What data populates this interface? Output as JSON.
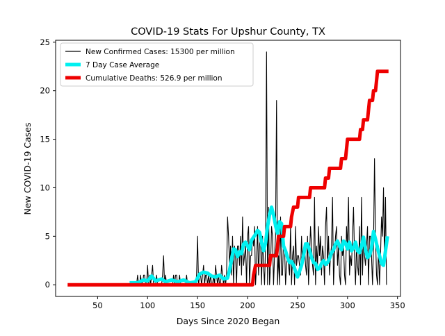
{
  "chart_data": {
    "type": "line",
    "title": "COVID-19 Stats For Upshur County, TX",
    "xlabel": "Days Since 2020 Began",
    "ylabel": "New COVID-19 Cases",
    "xlim": [
      8,
      353
    ],
    "ylim": [
      -1.2,
      25.2
    ],
    "xticks": [
      50,
      100,
      150,
      200,
      250,
      300,
      350
    ],
    "yticks": [
      0,
      5,
      10,
      15,
      20,
      25
    ],
    "legend_position": "top-left",
    "colors": {
      "daily": "#000000",
      "avg": "#00f0f0",
      "deaths": "#ee0000"
    },
    "series": [
      {
        "name": "New Confirmed Cases: 15300 per million",
        "style": "thin-black",
        "x_start": 82,
        "values": [
          0,
          0,
          0,
          0,
          0,
          0,
          0,
          0,
          1,
          0,
          0,
          1,
          0,
          0,
          1,
          1,
          0,
          0,
          2,
          0,
          1,
          0,
          1,
          2,
          0,
          0,
          0,
          1,
          0,
          0,
          0,
          0,
          0,
          1,
          3,
          0,
          1,
          0,
          0,
          0,
          0,
          0,
          0,
          0,
          1,
          0,
          1,
          1,
          0,
          0,
          1,
          0,
          0,
          0,
          0,
          0,
          0,
          1,
          0,
          0,
          0,
          0,
          0,
          0,
          0,
          0,
          0,
          1,
          5,
          0,
          1,
          1,
          0,
          1,
          2,
          0,
          1,
          1,
          0,
          1,
          0,
          1,
          0,
          0,
          1,
          0,
          2,
          1,
          0,
          1,
          0,
          0,
          2,
          1,
          0,
          1,
          0,
          1,
          7,
          5,
          2,
          4,
          1,
          5,
          0,
          4,
          3,
          0,
          4,
          4,
          2,
          5,
          1,
          7,
          2,
          3,
          4,
          0,
          5,
          6,
          0,
          3,
          3,
          5,
          4,
          6,
          0,
          2,
          6,
          1,
          4,
          5,
          0,
          5,
          2,
          0,
          4,
          24,
          0,
          8,
          0,
          2,
          6,
          5,
          0,
          3,
          5,
          19,
          0,
          3,
          0,
          7,
          1,
          1,
          5,
          4,
          0,
          2,
          3,
          2,
          1,
          6,
          0,
          3,
          4,
          0,
          6,
          2,
          3,
          3,
          2,
          1,
          5,
          2,
          3,
          4,
          2,
          1,
          5,
          0,
          3,
          6,
          4,
          2,
          1,
          9,
          0,
          4,
          2,
          6,
          3,
          5,
          1,
          4,
          3,
          0,
          6,
          8,
          2,
          5,
          1,
          3,
          4,
          9,
          0,
          3,
          5,
          6,
          2,
          4,
          1,
          0,
          5,
          3,
          4,
          1,
          0,
          6,
          4,
          9,
          1,
          3,
          2,
          5,
          8,
          3,
          0,
          4,
          2,
          1,
          6,
          0,
          9,
          1,
          5,
          3,
          2,
          4,
          6,
          0,
          5,
          5,
          3,
          0,
          4,
          13,
          5,
          1,
          0,
          4,
          0,
          3,
          7,
          5,
          10,
          2,
          9,
          0
        ]
      },
      {
        "name": "7 Day Case Average",
        "style": "thick-cyan",
        "points": [
          [
            82,
            0.2
          ],
          [
            90,
            0.2
          ],
          [
            96,
            0.5
          ],
          [
            100,
            0.4
          ],
          [
            104,
            0.9
          ],
          [
            108,
            0.4
          ],
          [
            114,
            0.6
          ],
          [
            118,
            0.3
          ],
          [
            124,
            0.5
          ],
          [
            130,
            0.3
          ],
          [
            136,
            0.5
          ],
          [
            142,
            0.2
          ],
          [
            148,
            0.3
          ],
          [
            152,
            1.1
          ],
          [
            156,
            1.3
          ],
          [
            160,
            1.2
          ],
          [
            164,
            0.9
          ],
          [
            168,
            0.8
          ],
          [
            172,
            1.0
          ],
          [
            176,
            0.6
          ],
          [
            180,
            0.7
          ],
          [
            182,
            1.5
          ],
          [
            184,
            2.6
          ],
          [
            186,
            3.7
          ],
          [
            188,
            3.6
          ],
          [
            190,
            2.9
          ],
          [
            192,
            3.4
          ],
          [
            194,
            3.2
          ],
          [
            196,
            4.2
          ],
          [
            198,
            4.4
          ],
          [
            200,
            4.0
          ],
          [
            202,
            3.6
          ],
          [
            204,
            4.6
          ],
          [
            206,
            4.9
          ],
          [
            208,
            5.2
          ],
          [
            210,
            5.6
          ],
          [
            212,
            5.4
          ],
          [
            214,
            4.4
          ],
          [
            216,
            3.5
          ],
          [
            218,
            4.3
          ],
          [
            220,
            6.0
          ],
          [
            222,
            7.2
          ],
          [
            224,
            8.0
          ],
          [
            226,
            7.2
          ],
          [
            228,
            6.1
          ],
          [
            230,
            5.3
          ],
          [
            232,
            6.5
          ],
          [
            234,
            6.3
          ],
          [
            236,
            4.0
          ],
          [
            238,
            3.5
          ],
          [
            240,
            2.8
          ],
          [
            242,
            2.3
          ],
          [
            244,
            2.4
          ],
          [
            246,
            2.0
          ],
          [
            248,
            1.4
          ],
          [
            250,
            0.8
          ],
          [
            252,
            1.4
          ],
          [
            254,
            2.0
          ],
          [
            256,
            3.0
          ],
          [
            258,
            4.2
          ],
          [
            260,
            4.2
          ],
          [
            262,
            3.6
          ],
          [
            264,
            2.8
          ],
          [
            266,
            2.3
          ],
          [
            268,
            2.2
          ],
          [
            270,
            1.6
          ],
          [
            272,
            1.7
          ],
          [
            274,
            2.2
          ],
          [
            276,
            2.5
          ],
          [
            278,
            2.1
          ],
          [
            280,
            2.3
          ],
          [
            282,
            2.7
          ],
          [
            284,
            3.3
          ],
          [
            286,
            3.6
          ],
          [
            288,
            4.2
          ],
          [
            290,
            4.5
          ],
          [
            292,
            4.0
          ],
          [
            294,
            3.6
          ],
          [
            296,
            4.5
          ],
          [
            298,
            4.3
          ],
          [
            300,
            3.7
          ],
          [
            302,
            4.4
          ],
          [
            304,
            3.5
          ],
          [
            306,
            3.8
          ],
          [
            308,
            4.4
          ],
          [
            310,
            3.5
          ],
          [
            312,
            3.3
          ],
          [
            314,
            4.0
          ],
          [
            316,
            4.9
          ],
          [
            318,
            3.6
          ],
          [
            320,
            2.8
          ],
          [
            322,
            3.0
          ],
          [
            324,
            3.8
          ],
          [
            326,
            5.5
          ],
          [
            328,
            4.7
          ],
          [
            330,
            3.8
          ],
          [
            332,
            3.0
          ],
          [
            334,
            2.2
          ],
          [
            336,
            2.0
          ],
          [
            338,
            3.5
          ],
          [
            340,
            5.0
          ]
        ]
      },
      {
        "name": "Cumulative Deaths: 526.9 per million",
        "style": "thick-red",
        "points": [
          [
            20,
            0
          ],
          [
            205,
            0
          ],
          [
            206,
            1
          ],
          [
            208,
            2
          ],
          [
            222,
            2
          ],
          [
            223,
            3
          ],
          [
            229,
            3
          ],
          [
            230,
            4
          ],
          [
            231,
            5
          ],
          [
            236,
            5
          ],
          [
            237,
            6
          ],
          [
            243,
            6
          ],
          [
            244,
            7
          ],
          [
            246,
            8
          ],
          [
            250,
            8
          ],
          [
            251,
            9
          ],
          [
            262,
            9
          ],
          [
            263,
            10
          ],
          [
            277,
            10
          ],
          [
            278,
            11
          ],
          [
            281,
            11
          ],
          [
            282,
            12
          ],
          [
            293,
            12
          ],
          [
            294,
            13
          ],
          [
            298,
            13
          ],
          [
            299,
            14
          ],
          [
            300,
            15
          ],
          [
            312,
            15
          ],
          [
            313,
            16
          ],
          [
            315,
            16
          ],
          [
            316,
            17
          ],
          [
            320,
            17
          ],
          [
            321,
            18
          ],
          [
            322,
            19
          ],
          [
            325,
            19
          ],
          [
            326,
            20
          ],
          [
            328,
            20
          ],
          [
            329,
            21
          ],
          [
            330,
            22
          ],
          [
            341,
            22
          ]
        ]
      }
    ]
  }
}
